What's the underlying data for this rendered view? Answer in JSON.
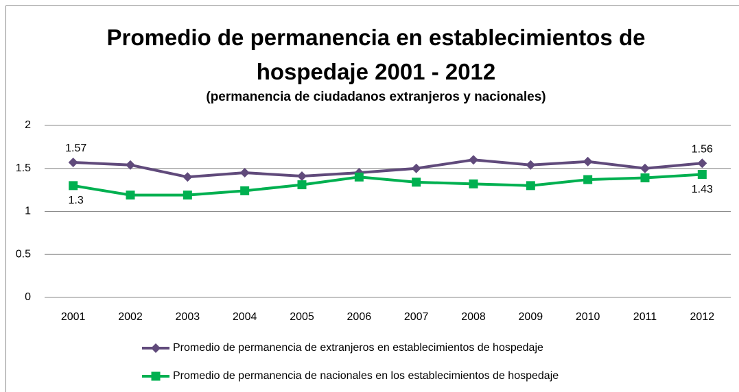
{
  "chart_data": {
    "type": "line",
    "title": "Promedio de permanencia en establecimientos de hospedaje 2001 - 2012",
    "subtitle": "(permanencia de ciudadanos extranjeros y nacionales)",
    "categories": [
      "2001",
      "2002",
      "2003",
      "2004",
      "2005",
      "2006",
      "2007",
      "2008",
      "2009",
      "2010",
      "2011",
      "2012"
    ],
    "series": [
      {
        "name": "Promedio de permanencia de extranjeros en establecimientos de hospedaje",
        "color": "#604a7b",
        "marker": "diamond",
        "values": [
          1.57,
          1.54,
          1.4,
          1.45,
          1.41,
          1.45,
          1.5,
          1.6,
          1.54,
          1.58,
          1.5,
          1.56
        ],
        "value_labels": [
          "1.57",
          null,
          null,
          null,
          null,
          null,
          null,
          null,
          null,
          null,
          null,
          "1.56"
        ]
      },
      {
        "name": "Promedio de permanencia de nacionales en los establecimientos de hospedaje",
        "color": "#00b050",
        "marker": "square",
        "values": [
          1.3,
          1.19,
          1.19,
          1.24,
          1.31,
          1.4,
          1.34,
          1.32,
          1.3,
          1.37,
          1.39,
          1.43
        ],
        "value_labels": [
          "1.3",
          null,
          null,
          null,
          null,
          null,
          null,
          null,
          null,
          null,
          null,
          "1.43"
        ]
      }
    ],
    "ylim": [
      0,
      2
    ],
    "yticks": [
      0,
      0.5,
      1,
      1.5,
      2
    ],
    "grid": true,
    "legend": "bottom"
  }
}
